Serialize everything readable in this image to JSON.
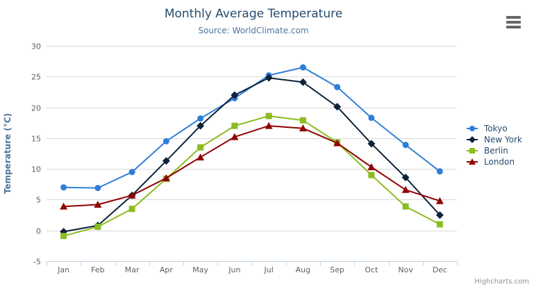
{
  "chart_data": {
    "type": "line",
    "title": "Monthly Average Temperature",
    "subtitle": "Source: WorldClimate.com",
    "xlabel": "",
    "ylabel": "Temperature (°C)",
    "categories": [
      "Jan",
      "Feb",
      "Mar",
      "Apr",
      "May",
      "Jun",
      "Jul",
      "Aug",
      "Sep",
      "Oct",
      "Nov",
      "Dec"
    ],
    "ylim": [
      -5,
      30
    ],
    "yticks": [
      -5,
      0,
      5,
      10,
      15,
      20,
      25,
      30
    ],
    "grid": true,
    "legend_position": "right",
    "series": [
      {
        "name": "Tokyo",
        "color": "#2f7ed8",
        "marker": "circle",
        "values": [
          7.0,
          6.9,
          9.5,
          14.5,
          18.2,
          21.5,
          25.2,
          26.5,
          23.3,
          18.3,
          13.9,
          9.6
        ]
      },
      {
        "name": "New York",
        "color": "#0d233a",
        "marker": "diamond",
        "values": [
          -0.2,
          0.8,
          5.7,
          11.3,
          17.0,
          22.0,
          24.8,
          24.1,
          20.1,
          14.1,
          8.6,
          2.5
        ]
      },
      {
        "name": "Berlin",
        "color": "#8bbc21",
        "marker": "square",
        "values": [
          -0.9,
          0.6,
          3.5,
          8.4,
          13.5,
          17.0,
          18.6,
          17.9,
          14.3,
          9.0,
          3.9,
          1.0
        ]
      },
      {
        "name": "London",
        "color": "#910000",
        "marker": "triangle",
        "values": [
          3.9,
          4.2,
          5.7,
          8.5,
          11.9,
          15.2,
          17.0,
          16.6,
          14.2,
          10.3,
          6.6,
          4.8
        ]
      }
    ],
    "credits": "Highcharts.com"
  },
  "menu_button": {
    "icon": "hamburger-icon"
  },
  "colors": {
    "title": "#274b6d",
    "subtitle": "#4d759e",
    "axis_title": "#4d759e",
    "axis_labels": "#606060",
    "grid_line": "#d8d8d8",
    "axis_line": "#c0d0e0",
    "legend_text": "#274b6d",
    "credits_text": "#909090",
    "menu_icon": "#666666"
  }
}
